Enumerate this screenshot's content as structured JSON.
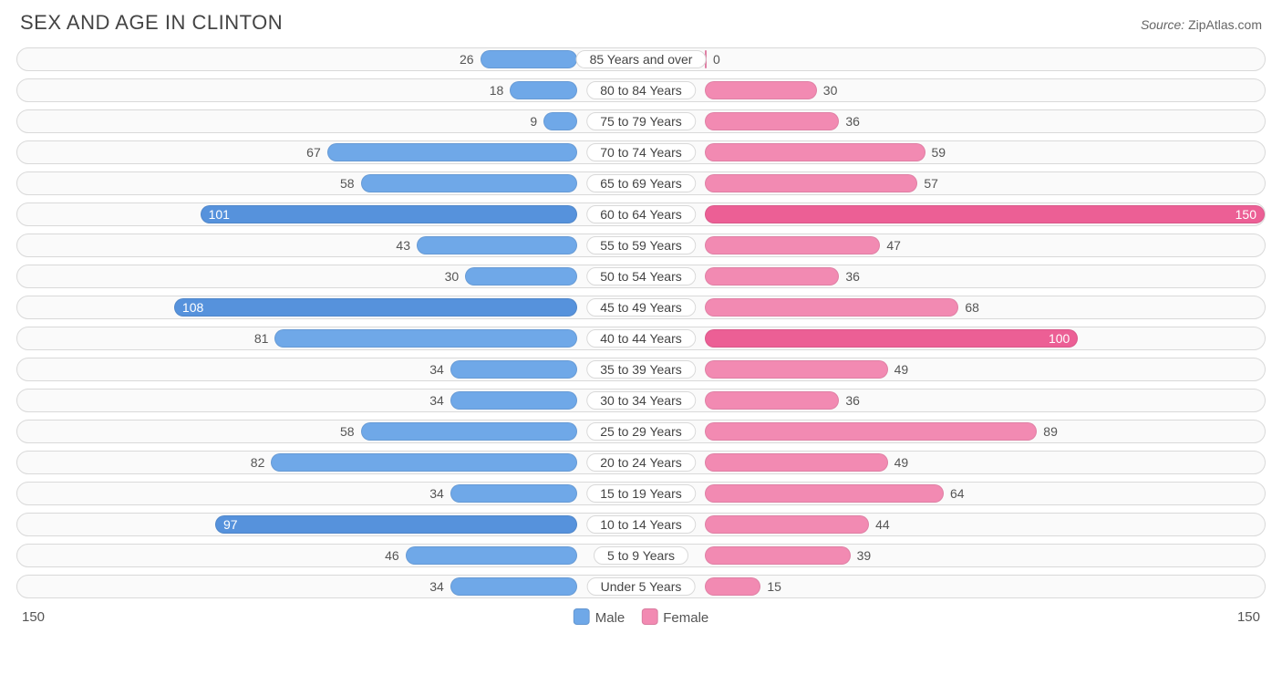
{
  "title": "SEX AND AGE IN CLINTON",
  "source_label": "Source:",
  "source_value": "ZipAtlas.com",
  "legend": {
    "male": "Male",
    "female": "Female"
  },
  "axis_max_label_left": "150",
  "axis_max_label_right": "150",
  "chart": {
    "type": "population-pyramid",
    "max": 150,
    "male_color": "#6fa8e8",
    "male_color_strong": "#5692dc",
    "female_color": "#f28ab2",
    "female_color_strong": "#ec5f95",
    "track_bg": "#fafafa",
    "track_border": "#d9d9d9",
    "label_pill_bg": "#ffffff",
    "label_pill_border": "#d9d9d9",
    "title_fontsize": 22,
    "value_fontsize": 14,
    "rows": [
      {
        "label": "85 Years and over",
        "male": 26,
        "female": 0
      },
      {
        "label": "80 to 84 Years",
        "male": 18,
        "female": 30
      },
      {
        "label": "75 to 79 Years",
        "male": 9,
        "female": 36
      },
      {
        "label": "70 to 74 Years",
        "male": 67,
        "female": 59
      },
      {
        "label": "65 to 69 Years",
        "male": 58,
        "female": 57
      },
      {
        "label": "60 to 64 Years",
        "male": 101,
        "female": 150
      },
      {
        "label": "55 to 59 Years",
        "male": 43,
        "female": 47
      },
      {
        "label": "50 to 54 Years",
        "male": 30,
        "female": 36
      },
      {
        "label": "45 to 49 Years",
        "male": 108,
        "female": 68
      },
      {
        "label": "40 to 44 Years",
        "male": 81,
        "female": 100
      },
      {
        "label": "35 to 39 Years",
        "male": 34,
        "female": 49
      },
      {
        "label": "30 to 34 Years",
        "male": 34,
        "female": 36
      },
      {
        "label": "25 to 29 Years",
        "male": 58,
        "female": 89
      },
      {
        "label": "20 to 24 Years",
        "male": 82,
        "female": 49
      },
      {
        "label": "15 to 19 Years",
        "male": 34,
        "female": 64
      },
      {
        "label": "10 to 14 Years",
        "male": 97,
        "female": 44
      },
      {
        "label": "5 to 9 Years",
        "male": 46,
        "female": 39
      },
      {
        "label": "Under 5 Years",
        "male": 34,
        "female": 15
      }
    ]
  }
}
